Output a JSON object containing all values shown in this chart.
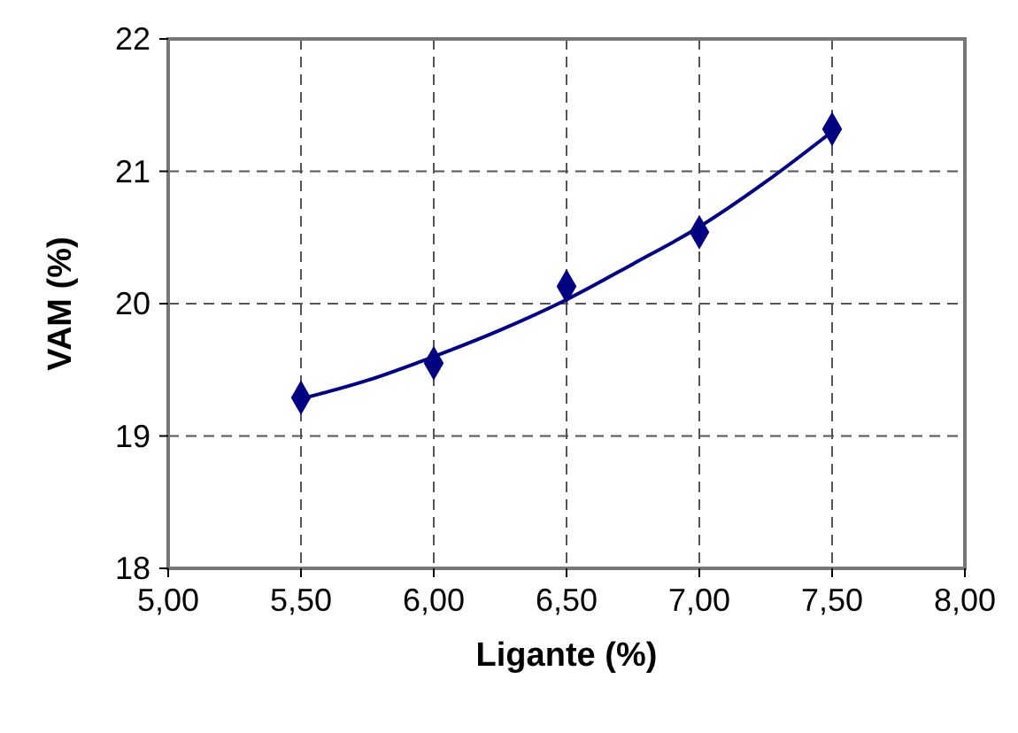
{
  "chart_data": {
    "type": "scatter",
    "xlabel": "Ligante (%)",
    "ylabel": "VAM (%)",
    "xlim": [
      5,
      8
    ],
    "xticks": [
      {
        "value": 5,
        "label": "5,00"
      },
      {
        "value": 5.5,
        "label": "5,50"
      },
      {
        "value": 6,
        "label": "6,00"
      },
      {
        "value": 6.5,
        "label": "6,50"
      },
      {
        "value": 7,
        "label": "7,00"
      },
      {
        "value": 7.5,
        "label": "7,50"
      },
      {
        "value": 8,
        "label": "8,00"
      }
    ],
    "ylim": [
      18,
      22
    ],
    "yticks": [
      18,
      19,
      20,
      21,
      22
    ],
    "grid": true,
    "series": [
      {
        "marker": "diamond",
        "color": "#000080",
        "x": [
          5.5,
          6,
          6.5,
          7,
          7.5
        ],
        "values": [
          19.29,
          19.55,
          20.13,
          20.54,
          21.32
        ]
      },
      {
        "type": "line",
        "marker": "none",
        "color": "#000080",
        "line_style": "solid",
        "x": [
          5.5,
          5.75,
          6,
          6.25,
          6.5,
          6.75,
          7,
          7.25,
          7.5
        ],
        "values": [
          19.28,
          19.42,
          19.6,
          19.8,
          20.03,
          20.3,
          20.58,
          20.92,
          21.3
        ]
      }
    ]
  }
}
